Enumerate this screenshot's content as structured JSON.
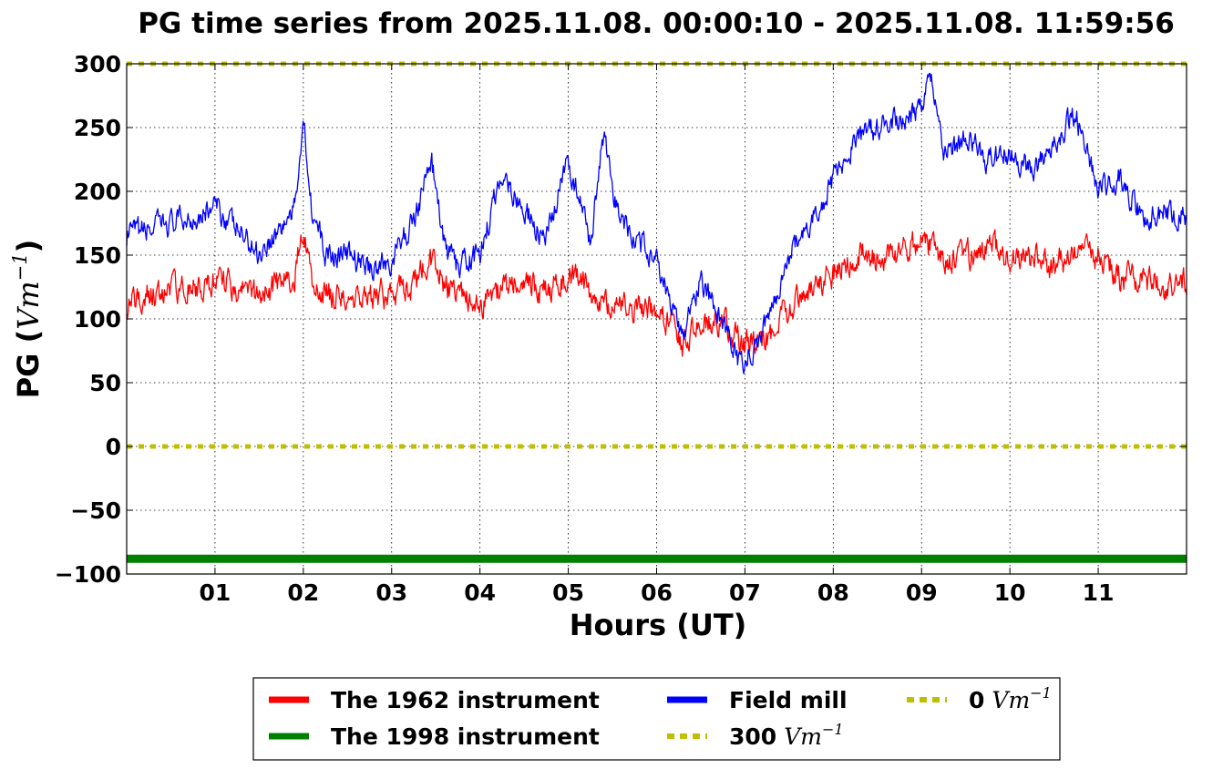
{
  "chart_data": {
    "type": "line",
    "title": "PG time series from 2025.11.08. 00:00:10 - 2025.11.08. 11:59:56",
    "xlabel": "Hours (UT)",
    "ylabel": "PG (",
    "ylabel_unit": "Vm",
    "ylabel_exp": "−1",
    "ylabel_close": ")",
    "xlim": [
      0,
      12
    ],
    "ylim": [
      -100,
      300
    ],
    "grid": true,
    "x_ticks": [
      {
        "x": 1,
        "label": "01"
      },
      {
        "x": 2,
        "label": "02"
      },
      {
        "x": 3,
        "label": "03"
      },
      {
        "x": 4,
        "label": "04"
      },
      {
        "x": 5,
        "label": "05"
      },
      {
        "x": 6,
        "label": "06"
      },
      {
        "x": 7,
        "label": "07"
      },
      {
        "x": 8,
        "label": "08"
      },
      {
        "x": 9,
        "label": "09"
      },
      {
        "x": 10,
        "label": "10"
      },
      {
        "x": 11,
        "label": "11"
      }
    ],
    "y_ticks": [
      {
        "y": 300,
        "label": "300"
      },
      {
        "y": 250,
        "label": "250"
      },
      {
        "y": 200,
        "label": "200"
      },
      {
        "y": 150,
        "label": "150"
      },
      {
        "y": 100,
        "label": "100"
      },
      {
        "y": 50,
        "label": "50"
      },
      {
        "y": 0,
        "label": "0"
      },
      {
        "y": -50,
        "label": "−50"
      },
      {
        "y": -100,
        "label": "−100"
      }
    ],
    "legend_placement": "bottom-center, below plot",
    "series": [
      {
        "name": "The 1962 instrument",
        "color": "#ff0000",
        "style": "solid",
        "x": [
          0,
          0.25,
          0.5,
          0.75,
          1,
          1.25,
          1.5,
          1.75,
          1.9,
          2,
          2.1,
          2.25,
          2.5,
          2.75,
          3,
          3.25,
          3.45,
          3.6,
          3.75,
          4,
          4.25,
          4.5,
          4.75,
          5,
          5.25,
          5.5,
          5.75,
          6,
          6.15,
          6.3,
          6.5,
          6.75,
          7,
          7.25,
          7.5,
          7.75,
          8,
          8.25,
          8.5,
          8.75,
          9,
          9.25,
          9.5,
          9.75,
          10,
          10.25,
          10.5,
          10.75,
          11,
          11.25,
          11.5,
          11.75,
          12
        ],
        "y": [
          112,
          118,
          122,
          126,
          130,
          125,
          118,
          128,
          135,
          170,
          135,
          118,
          120,
          118,
          118,
          128,
          145,
          128,
          120,
          110,
          125,
          128,
          120,
          135,
          120,
          110,
          108,
          105,
          95,
          80,
          98,
          95,
          80,
          85,
          108,
          120,
          135,
          150,
          148,
          150,
          165,
          145,
          150,
          155,
          150,
          148,
          140,
          155,
          150,
          130,
          132,
          125,
          130
        ]
      },
      {
        "name": "The 1998 instrument",
        "color": "#008000",
        "style": "solid",
        "x": [
          0,
          12
        ],
        "y": [
          -88,
          -88
        ]
      },
      {
        "name": "Field mill",
        "color": "#0000ff",
        "style": "solid",
        "x": [
          0,
          0.25,
          0.5,
          0.75,
          1,
          1.25,
          1.5,
          1.75,
          1.9,
          2,
          2.1,
          2.25,
          2.5,
          2.75,
          3,
          3.25,
          3.45,
          3.6,
          3.75,
          4,
          4.25,
          4.5,
          4.75,
          5,
          5.25,
          5.4,
          5.5,
          5.75,
          6,
          6.15,
          6.3,
          6.5,
          6.75,
          6.95,
          7.1,
          7.25,
          7.5,
          7.75,
          8,
          8.25,
          8.5,
          8.75,
          9,
          9.1,
          9.25,
          9.5,
          9.75,
          10,
          10.25,
          10.5,
          10.75,
          11,
          11.25,
          11.5,
          11.75,
          12
        ],
        "y": [
          165,
          170,
          175,
          180,
          188,
          170,
          152,
          172,
          185,
          260,
          185,
          150,
          150,
          140,
          145,
          178,
          225,
          155,
          140,
          150,
          215,
          185,
          160,
          225,
          160,
          245,
          195,
          160,
          150,
          110,
          90,
          130,
          95,
          62,
          80,
          98,
          150,
          175,
          210,
          240,
          250,
          255,
          270,
          295,
          230,
          240,
          225,
          230,
          215,
          240,
          260,
          200,
          210,
          180,
          185,
          180
        ]
      },
      {
        "name": "300",
        "name_unit": "Vm",
        "name_exp": "−1",
        "color": "#bfbf00",
        "style": "dotted",
        "x": [
          0,
          12
        ],
        "y": [
          300,
          300
        ]
      },
      {
        "name": "0",
        "name_unit": "Vm",
        "name_exp": "−1",
        "color": "#bfbf00",
        "style": "dotted",
        "x": [
          0,
          12
        ],
        "y": [
          0,
          0
        ]
      }
    ]
  }
}
